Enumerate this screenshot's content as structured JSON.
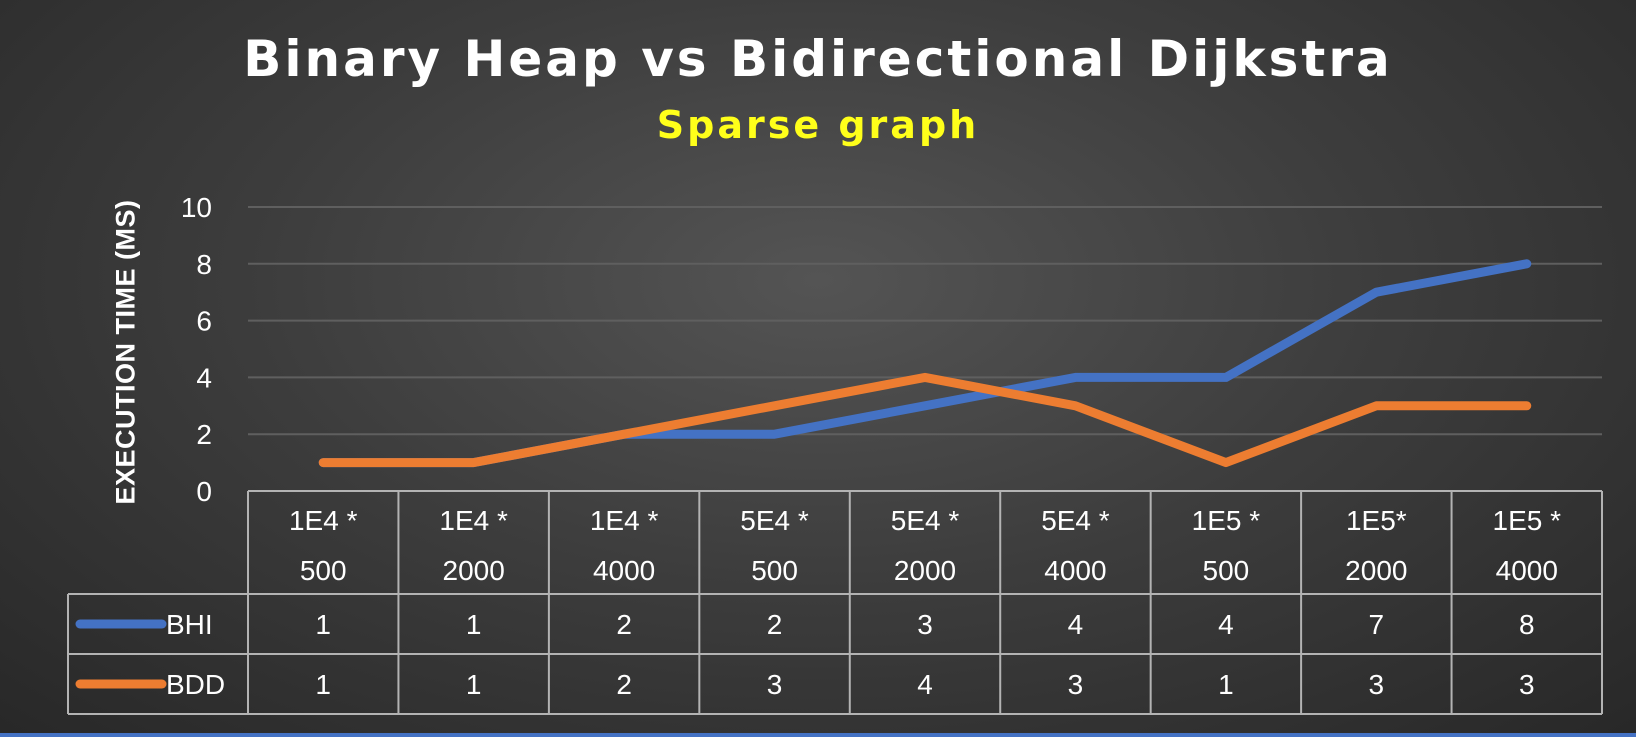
{
  "chart_data": {
    "type": "line",
    "title": "Binary Heap vs Bidirectional Dijkstra",
    "subtitle": "Sparse graph",
    "ylabel": "EXECUTION TIME (MS)",
    "categories": [
      [
        "1E4 *",
        "500"
      ],
      [
        "1E4 *",
        "2000"
      ],
      [
        "1E4 *",
        "4000"
      ],
      [
        "5E4 *",
        "500"
      ],
      [
        "5E4 *",
        "2000"
      ],
      [
        "5E4 *",
        "4000"
      ],
      [
        "1E5 *",
        "500"
      ],
      [
        "1E5*",
        "2000"
      ],
      [
        "1E5 *",
        "4000"
      ]
    ],
    "series": [
      {
        "name": "BHI",
        "color": "#4472c4",
        "values": [
          1,
          1,
          2,
          2,
          3,
          4,
          4,
          7,
          8
        ]
      },
      {
        "name": "BDD",
        "color": "#ed7d31",
        "values": [
          1,
          1,
          2,
          3,
          4,
          3,
          1,
          3,
          3
        ]
      }
    ],
    "ylim": [
      0,
      10
    ],
    "yticks": [
      0,
      2,
      4,
      6,
      8,
      10
    ],
    "grid": true,
    "legend": "data-table",
    "colors": {
      "subtitle": "#ffff1a",
      "text": "#ffffff",
      "gridline": "#5f5f5f",
      "table_border": "#b3b3b3",
      "bottom_strip": "#4472c4"
    }
  }
}
